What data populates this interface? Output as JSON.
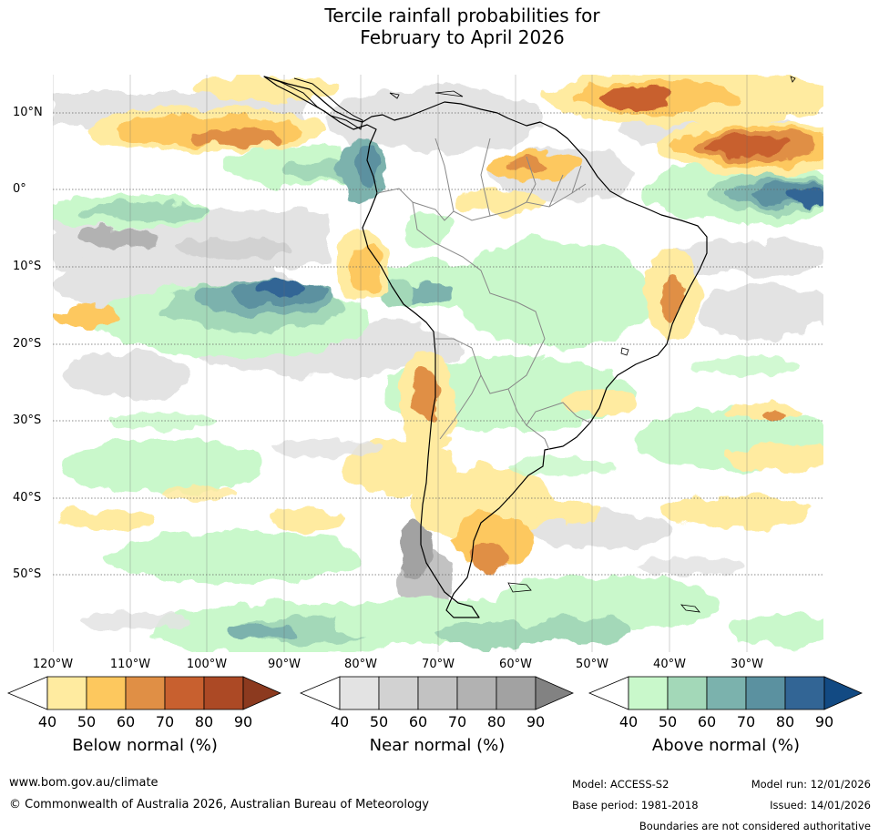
{
  "title": {
    "line1": "Tercile rainfall probabilities for",
    "line2": "February to April 2026"
  },
  "map": {
    "lat_labels": [
      "10°N",
      "0°",
      "10°S",
      "20°S",
      "30°S",
      "40°S",
      "50°S"
    ],
    "lon_labels": [
      "120°W",
      "110°W",
      "100°W",
      "90°W",
      "80°W",
      "70°W",
      "60°W",
      "50°W",
      "40°W",
      "30°W"
    ],
    "extent": {
      "lon_min": -120,
      "lon_max": -20,
      "lat_min": -60,
      "lat_max": 15
    }
  },
  "legend": {
    "ticks": [
      "40",
      "50",
      "60",
      "70",
      "80",
      "90"
    ],
    "below": {
      "title": "Below normal (%)",
      "colors": [
        "#ffffff",
        "#ffeba0",
        "#fdc85e",
        "#e08f45",
        "#c8602f",
        "#ac4925",
        "#8c3a1f"
      ]
    },
    "near": {
      "title": "Near normal (%)",
      "colors": [
        "#ffffff",
        "#e3e3e3",
        "#d2d2d2",
        "#c2c2c2",
        "#b2b2b2",
        "#a2a2a2",
        "#828282"
      ]
    },
    "above": {
      "title": "Above normal (%)",
      "colors": [
        "#ffffff",
        "#c9f8cb",
        "#a3d8b8",
        "#7bb2ad",
        "#5b91a0",
        "#326595",
        "#124a83"
      ]
    }
  },
  "footer": {
    "website": "www.bom.gov.au/climate",
    "copyright": "© Commonwealth of Australia 2026, Australian Bureau of Meteorology",
    "model": "Model: ACCESS-S2",
    "model_run": "Model run: 12/01/2026",
    "base_period": "Base period: 1981-2018",
    "issued": "Issued: 14/01/2026",
    "disclaimer": "Boundaries are not considered authoritative"
  }
}
